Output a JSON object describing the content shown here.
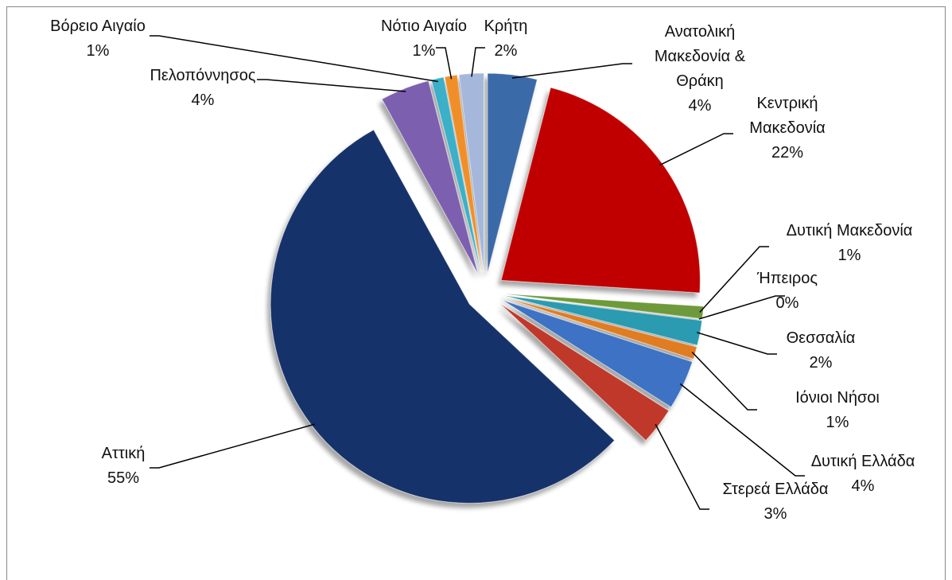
{
  "chart_data": {
    "type": "pie",
    "categories": [
      "Ανατολική Μακεδονία & Θράκη",
      "Κεντρική Μακεδονία",
      "Δυτική Μακεδονία",
      "Ήπειρος",
      "Θεσσαλία",
      "Ιόνιοι Νήσοι",
      "Δυτική Ελλάδα",
      "Στερεά Ελλάδα",
      "Αττική",
      "Πελοπόννησος",
      "Βόρειο Αιγαίο",
      "Νότιο Αιγαίο",
      "Κρήτη"
    ],
    "values": [
      4,
      22,
      1,
      0,
      2,
      1,
      4,
      3,
      55,
      4,
      1,
      1,
      2
    ],
    "value_labels": [
      "4%",
      "22%",
      "1%",
      "0%",
      "2%",
      "1%",
      "4%",
      "3%",
      "55%",
      "4%",
      "1%",
      "1%",
      "2%"
    ],
    "colors": [
      "#3a6aa8",
      "#c00000",
      "#6e9a3a",
      "#6b3f8e",
      "#2a9bb0",
      "#e07b20",
      "#3d72c4",
      "#c0392b",
      "#17306a",
      "#7d5fb0",
      "#3ab0c8",
      "#f08f2a",
      "#a5b8dc"
    ]
  }
}
